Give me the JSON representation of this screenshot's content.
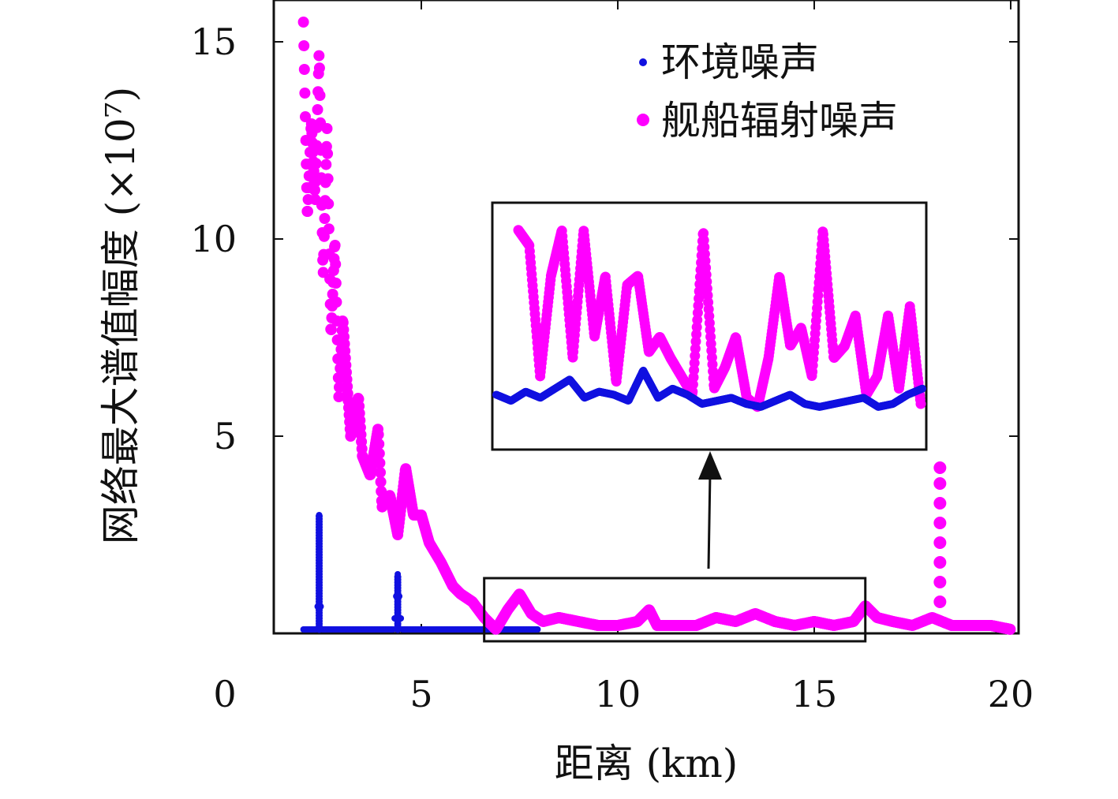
{
  "chart_data": {
    "type": "scatter",
    "xlabel": "距离 (km)",
    "ylabel": "网络最大谱值幅度 (×10⁷)",
    "xlim": [
      0,
      20
    ],
    "ylim": [
      0,
      15.5
    ],
    "x_ticks": [
      0,
      5,
      10,
      15,
      20
    ],
    "y_ticks": [
      5,
      10,
      15
    ],
    "legend_position": "top-right",
    "colors": {
      "环境噪声": "#1010e0",
      "舰船辐射噪声": "#ff00ff"
    },
    "series": [
      {
        "name": "环境噪声",
        "marker": "small-dot",
        "x": [
          2.0,
          2.2,
          2.35,
          2.4,
          2.45,
          2.5,
          2.7,
          3.0,
          3.5,
          4.0,
          4.3,
          4.4,
          4.5,
          4.6,
          5.0,
          5.5,
          6.0,
          6.5,
          7.0,
          7.5,
          8.0
        ],
        "y": [
          0.1,
          0.1,
          0.1,
          3.0,
          0.1,
          0.1,
          0.1,
          0.1,
          0.1,
          0.1,
          0.1,
          1.5,
          0.1,
          0.1,
          0.1,
          0.1,
          0.1,
          0.1,
          0.1,
          0.1,
          0.1
        ]
      },
      {
        "name": "舰船辐射噪声",
        "marker": "large-dot",
        "x": [
          2.0,
          2.1,
          2.2,
          2.3,
          2.4,
          2.5,
          2.6,
          2.7,
          2.8,
          2.9,
          3.0,
          3.2,
          3.4,
          3.5,
          3.7,
          3.9,
          4.0,
          4.2,
          4.4,
          4.6,
          4.8,
          5.0,
          5.2,
          5.5,
          5.8,
          6.0,
          6.3,
          6.6,
          6.9,
          7.2,
          7.5,
          7.8,
          8.1,
          8.5,
          9.0,
          9.5,
          10.0,
          10.5,
          10.8,
          11.0,
          11.5,
          12.0,
          12.5,
          13.0,
          13.5,
          14.0,
          14.5,
          15.0,
          15.5,
          16.0,
          16.3,
          16.6,
          17.0,
          17.5,
          18.0,
          18.5,
          19.0,
          19.5,
          20.0
        ],
        "y": [
          15.5,
          10.5,
          13.0,
          11.0,
          14.8,
          9.0,
          12.8,
          7.5,
          10.0,
          6.0,
          8.0,
          5.0,
          6.0,
          4.5,
          4.0,
          5.2,
          3.2,
          3.5,
          2.5,
          4.2,
          3.0,
          3.0,
          2.3,
          1.8,
          1.2,
          1.0,
          0.8,
          0.4,
          0.1,
          0.6,
          1.0,
          0.5,
          0.3,
          0.4,
          0.3,
          0.2,
          0.2,
          0.3,
          0.6,
          0.2,
          0.2,
          0.2,
          0.4,
          0.3,
          0.5,
          0.3,
          0.2,
          0.3,
          0.2,
          0.3,
          0.7,
          0.4,
          0.3,
          0.2,
          0.4,
          0.2,
          0.2,
          0.2,
          0.1
        ]
      },
      {
        "name": "",
        "marker": "large-dot",
        "x": [
          18.2,
          18.2,
          18.2,
          18.2,
          18.2,
          18.2,
          18.2,
          18.2
        ],
        "y": [
          4.2,
          3.8,
          3.3,
          2.8,
          2.3,
          1.8,
          1.3,
          0.8
        ]
      }
    ],
    "inset": {
      "source_xlim": [
        6.6,
        16.3
      ],
      "source_ylim": [
        -0.2,
        1.4
      ],
      "ship_profile": [
        11.0,
        10.5,
        6.2,
        9.5,
        11.0,
        6.8,
        11.0,
        7.5,
        9.5,
        6.0,
        9.2,
        9.5,
        7.0,
        7.5,
        6.8,
        6.2,
        5.6,
        11.0,
        5.8,
        6.5,
        7.5,
        5.5,
        5.2,
        6.8,
        9.5,
        7.2,
        7.8,
        6.2,
        11.0,
        6.8,
        7.2,
        8.2,
        5.6,
        6.2,
        8.2,
        5.8,
        8.5,
        5.3
      ],
      "env_profile": [
        5.6,
        5.4,
        5.7,
        5.5,
        5.8,
        6.1,
        5.5,
        5.7,
        5.6,
        5.4,
        6.4,
        5.5,
        5.8,
        5.6,
        5.3,
        5.4,
        5.5,
        5.3,
        5.2,
        5.4,
        5.6,
        5.3,
        5.2,
        5.3,
        5.4,
        5.5,
        5.2,
        5.3,
        5.6,
        5.8
      ]
    }
  }
}
